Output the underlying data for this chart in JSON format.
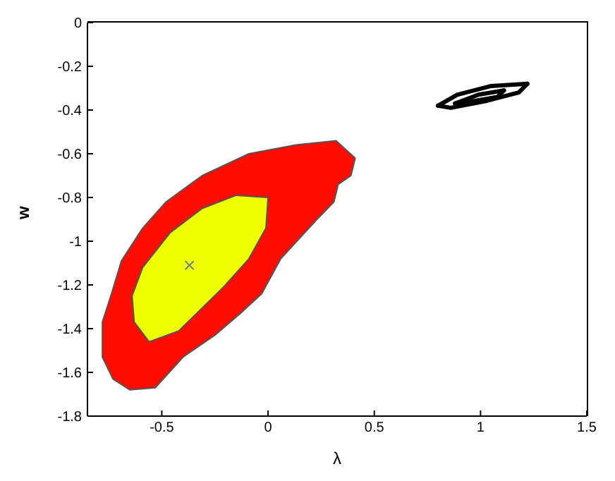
{
  "chart_data": {
    "type": "area",
    "xlabel": "λ",
    "ylabel": "w",
    "xlim": [
      -0.85,
      1.5
    ],
    "ylim": [
      -1.8,
      0
    ],
    "xticks": [
      -0.5,
      0,
      0.5,
      1,
      1.5
    ],
    "yticks": [
      0,
      -0.2,
      -0.4,
      -0.6,
      -0.8,
      -1,
      -1.2,
      -1.4,
      -1.6,
      -1.8
    ],
    "grid": false,
    "legend": false,
    "series": [
      {
        "color": "#ff0d00",
        "x": [
          0.32,
          0.41,
          0.39,
          0.33,
          0.31,
          0.23,
          0.06,
          -0.03,
          -0.13,
          -0.25,
          -0.4,
          -0.53,
          -0.65,
          -0.73,
          -0.78,
          -0.78,
          -0.74,
          -0.69,
          -0.59,
          -0.48,
          -0.31,
          -0.09,
          0.13
        ],
        "values": [
          -0.54,
          -0.62,
          -0.7,
          -0.74,
          -0.82,
          -0.9,
          -1.08,
          -1.24,
          -1.33,
          -1.43,
          -1.53,
          -1.67,
          -1.68,
          -1.63,
          -1.53,
          -1.37,
          -1.25,
          -1.09,
          -0.94,
          -0.82,
          -0.7,
          -0.6,
          -0.56
        ]
      },
      {
        "color": "#eeff00",
        "x": [
          0,
          -0.01,
          -0.09,
          -0.21,
          -0.42,
          -0.56,
          -0.63,
          -0.64,
          -0.59,
          -0.46,
          -0.31,
          -0.15
        ],
        "values": [
          -0.8,
          -0.94,
          -1.08,
          -1.21,
          -1.41,
          -1.46,
          -1.37,
          -1.25,
          -1.12,
          -0.96,
          -0.85,
          -0.79
        ]
      },
      {
        "type": "line",
        "color": "#000000",
        "x": [
          0.8,
          0.89,
          1.05,
          1.22
        ],
        "values": [
          -0.38,
          -0.33,
          -0.29,
          -0.28
        ]
      },
      {
        "type": "line",
        "color": "#000000",
        "x": [
          0.8,
          0.86,
          1.02,
          1.18,
          1.22
        ],
        "values": [
          -0.38,
          -0.39,
          -0.36,
          -0.32,
          -0.28
        ]
      },
      {
        "type": "line",
        "color": "#000000",
        "x": [
          0.88,
          0.99,
          1.11
        ],
        "values": [
          -0.37,
          -0.33,
          -0.31
        ]
      },
      {
        "type": "line",
        "color": "#000000",
        "x": [
          0.88,
          0.96,
          1.08,
          1.11
        ],
        "values": [
          -0.37,
          -0.36,
          -0.34,
          -0.31
        ]
      },
      {
        "type": "scatter",
        "color": "#6a7a90",
        "marker": "cross",
        "x": [
          -0.37
        ],
        "values": [
          -1.11
        ]
      }
    ]
  }
}
